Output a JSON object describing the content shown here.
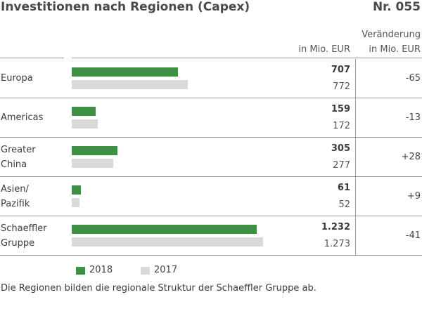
{
  "header": {
    "title": "Investitionen nach Regionen (Capex)",
    "number": "Nr. 055",
    "col_value": "in Mio. EUR",
    "col_change_1": "Veränderung",
    "col_change_2": "in Mio. EUR"
  },
  "legend": {
    "current": "2018",
    "previous": "2017"
  },
  "footnote": "Die Regionen bilden die regionale Struktur der Schaeffler Gruppe ab.",
  "colors": {
    "current": "#3f8f45",
    "previous": "#d9d9d9",
    "rule": "#9a9a9a"
  },
  "chart_data": {
    "type": "bar",
    "title": "Investitionen nach Regionen (Capex)",
    "ylabel": "in Mio. EUR",
    "categories": [
      "Europa",
      "Americas",
      "Greater China",
      "Asien/ Pazifik",
      "Schaeffler Gruppe"
    ],
    "category_lines": [
      [
        "Europa"
      ],
      [
        "Americas"
      ],
      [
        "Greater",
        "China"
      ],
      [
        "Asien/",
        "Pazifik"
      ],
      [
        "Schaeffler",
        "Gruppe"
      ]
    ],
    "series": [
      {
        "name": "2018",
        "values": [
          707,
          159,
          305,
          61,
          1232
        ]
      },
      {
        "name": "2017",
        "values": [
          772,
          172,
          277,
          52,
          1273
        ]
      }
    ],
    "value_labels_2018": [
      "707",
      "159",
      "305",
      "61",
      "1.232"
    ],
    "value_labels_2017": [
      "772",
      "172",
      "277",
      "52",
      "1.273"
    ],
    "changes": [
      "-65",
      "-13",
      "+28",
      "+9",
      "-41"
    ],
    "xlim": [
      0,
      1273
    ]
  }
}
